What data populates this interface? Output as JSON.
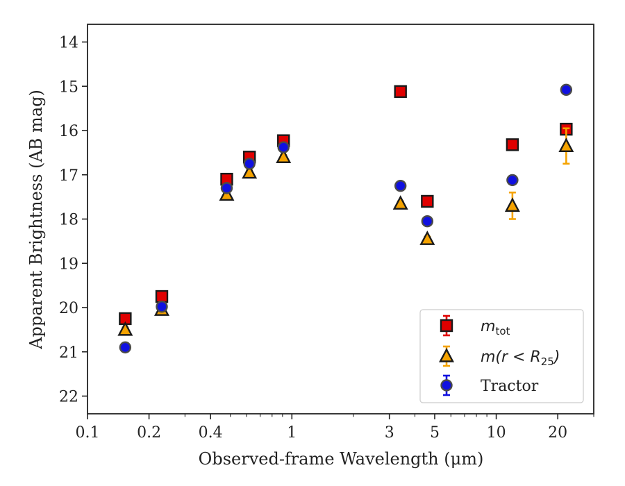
{
  "chart_data": {
    "type": "scatter",
    "xscale": "log",
    "xlim": [
      0.1,
      30
    ],
    "ylim": [
      22.4,
      13.6
    ],
    "y_inverted": true,
    "xlabel": "Observed-frame Wavelength (μm)",
    "ylabel": "Apparent Brightness (AB mag)",
    "x_ticks": [
      {
        "value": 0.1,
        "label": "0.1"
      },
      {
        "value": 0.2,
        "label": "0.2"
      },
      {
        "value": 0.4,
        "label": "0.4"
      },
      {
        "value": 1,
        "label": "1"
      },
      {
        "value": 3,
        "label": "3"
      },
      {
        "value": 5,
        "label": "5"
      },
      {
        "value": 10,
        "label": "10"
      },
      {
        "value": 20,
        "label": "20"
      }
    ],
    "y_ticks": [
      {
        "value": 14,
        "label": "14"
      },
      {
        "value": 15,
        "label": "15"
      },
      {
        "value": 16,
        "label": "16"
      },
      {
        "value": 17,
        "label": "17"
      },
      {
        "value": 18,
        "label": "18"
      },
      {
        "value": 19,
        "label": "19"
      },
      {
        "value": 20,
        "label": "20"
      },
      {
        "value": 21,
        "label": "21"
      },
      {
        "value": 22,
        "label": "22"
      }
    ],
    "grid": false,
    "legend_position": "lower-right",
    "series": [
      {
        "name": "m_tot",
        "legend_main": "m",
        "legend_sub": "tot",
        "marker": "square",
        "color": "#e00000",
        "points": [
          {
            "x": 0.153,
            "y": 20.25,
            "err": 0.05
          },
          {
            "x": 0.231,
            "y": 19.75,
            "err": 0.05
          },
          {
            "x": 0.48,
            "y": 17.1,
            "err": 0.05
          },
          {
            "x": 0.62,
            "y": 16.6,
            "err": 0.05
          },
          {
            "x": 0.91,
            "y": 16.23,
            "err": 0.05
          },
          {
            "x": 3.4,
            "y": 15.12,
            "err": 0.05
          },
          {
            "x": 4.6,
            "y": 17.6,
            "err": 0.05
          },
          {
            "x": 12.0,
            "y": 16.32,
            "err": 0.05
          },
          {
            "x": 22.0,
            "y": 15.97,
            "err": 0.05
          }
        ]
      },
      {
        "name": "m(r < R25)",
        "legend_main": "m(r < R",
        "legend_sub": "25",
        "legend_tail": ")",
        "marker": "triangle",
        "color": "#f5a300",
        "points": [
          {
            "x": 0.153,
            "y": 20.5,
            "err": 0.05
          },
          {
            "x": 0.231,
            "y": 20.05,
            "err": 0.05
          },
          {
            "x": 0.48,
            "y": 17.45,
            "err": 0.05
          },
          {
            "x": 0.62,
            "y": 16.95,
            "err": 0.05
          },
          {
            "x": 0.91,
            "y": 16.6,
            "err": 0.05
          },
          {
            "x": 3.4,
            "y": 17.65,
            "err": 0.05
          },
          {
            "x": 4.6,
            "y": 18.45,
            "err": 0.05
          },
          {
            "x": 12.0,
            "y": 17.7,
            "err": 0.3
          },
          {
            "x": 22.0,
            "y": 16.35,
            "err": 0.4
          }
        ]
      },
      {
        "name": "Tractor",
        "legend_main": "Tractor",
        "marker": "circle",
        "color": "#1010e0",
        "points": [
          {
            "x": 0.153,
            "y": 20.9,
            "err": 0.05
          },
          {
            "x": 0.231,
            "y": 19.98,
            "err": 0.05
          },
          {
            "x": 0.48,
            "y": 17.3,
            "err": 0.05
          },
          {
            "x": 0.62,
            "y": 16.75,
            "err": 0.05
          },
          {
            "x": 0.91,
            "y": 16.38,
            "err": 0.05
          },
          {
            "x": 3.4,
            "y": 17.25,
            "err": 0.05
          },
          {
            "x": 4.6,
            "y": 18.05,
            "err": 0.05
          },
          {
            "x": 12.0,
            "y": 17.12,
            "err": 0.05
          },
          {
            "x": 22.0,
            "y": 15.08,
            "err": 0.05
          }
        ]
      }
    ]
  }
}
